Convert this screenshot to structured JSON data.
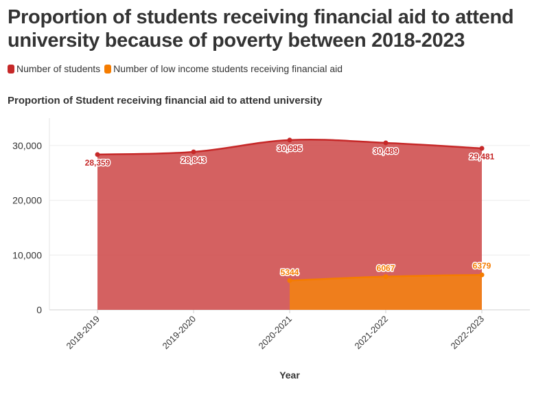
{
  "title": "Proportion of students receiving financial aid to attend university because of poverty between 2018-2023",
  "legend": [
    {
      "label": "Number of students",
      "color": "#c62828"
    },
    {
      "label": "Number of low income students receiving financial aid",
      "color": "#f57c00"
    }
  ],
  "chart_data": {
    "type": "area",
    "title": "Proportion of Student receiving financial aid to attend university",
    "xlabel": "Year",
    "ylabel": "",
    "ylim": [
      0,
      35000
    ],
    "yticks": [
      0,
      10000,
      20000,
      30000
    ],
    "ytick_labels": [
      "0",
      "10,000",
      "20,000",
      "30,000"
    ],
    "categories": [
      "2018-2019",
      "2019-2020",
      "2020-2021",
      "2021-2022",
      "2022-2023"
    ],
    "grid": true,
    "legend_position": "top-left",
    "series": [
      {
        "name": "Number of students",
        "color": "#c62828",
        "fill": "#cf5050",
        "values": [
          28359,
          28843,
          30995,
          30489,
          29481
        ],
        "labels": [
          "28,359",
          "28,843",
          "30,995",
          "30,489",
          "29,481"
        ]
      },
      {
        "name": "Number of low income students receiving financial aid",
        "color": "#f57c00",
        "fill": "#f07f1a",
        "values": [
          null,
          null,
          5344,
          6067,
          6379
        ],
        "labels": [
          "",
          "",
          "5344",
          "6067",
          "6379"
        ]
      }
    ]
  }
}
